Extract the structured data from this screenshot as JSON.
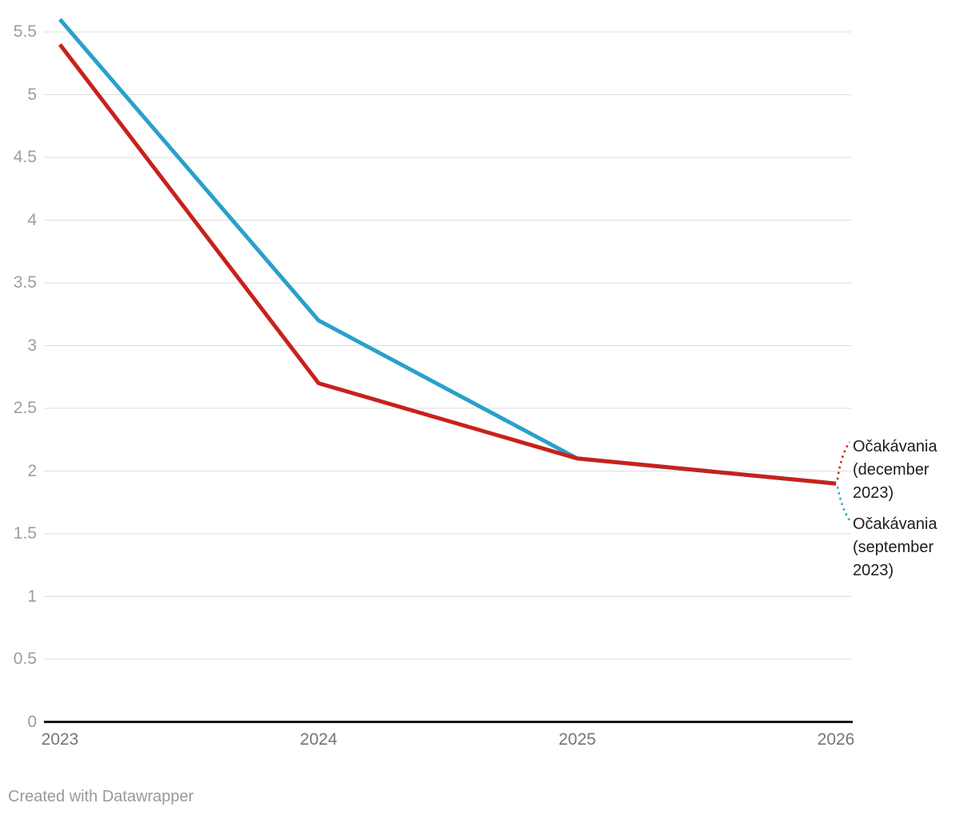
{
  "chart_data": {
    "type": "line",
    "x": [
      2023,
      2024,
      2025,
      2026
    ],
    "series": [
      {
        "name": "Očakávania (september 2023)",
        "values": [
          5.6,
          3.2,
          2.1,
          1.9
        ],
        "color": "#2aa0cc"
      },
      {
        "name": "Očakávania (december 2023)",
        "values": [
          5.4,
          2.7,
          2.1,
          1.9
        ],
        "color": "#c8211c"
      }
    ],
    "title": "",
    "xlabel": "",
    "ylabel": "",
    "ylim": [
      0,
      5.6
    ],
    "y_ticks": [
      "0",
      "0.5",
      "1",
      "1.5",
      "2",
      "2.5",
      "3",
      "3.5",
      "4",
      "4.5",
      "5",
      "5.5"
    ],
    "x_ticks": [
      "2023",
      "2024",
      "2025",
      "2026"
    ],
    "grid": "horizontal",
    "legend_position": "direct-labels-right"
  },
  "direct_labels": {
    "december": "Očakávania\n(december\n2023)",
    "september": "Očakávania\n(september\n2023)"
  },
  "footer": {
    "credit": "Created with Datawrapper"
  },
  "colors": {
    "series_september": "#2aa0cc",
    "series_december": "#c8211c",
    "gridline": "#dcdcdc",
    "baseline": "#191919",
    "y_tick_text": "#9e9e9e",
    "x_tick_text": "#757575",
    "label_text": "#1d1d1d",
    "footer_text": "#9a9a9a"
  }
}
